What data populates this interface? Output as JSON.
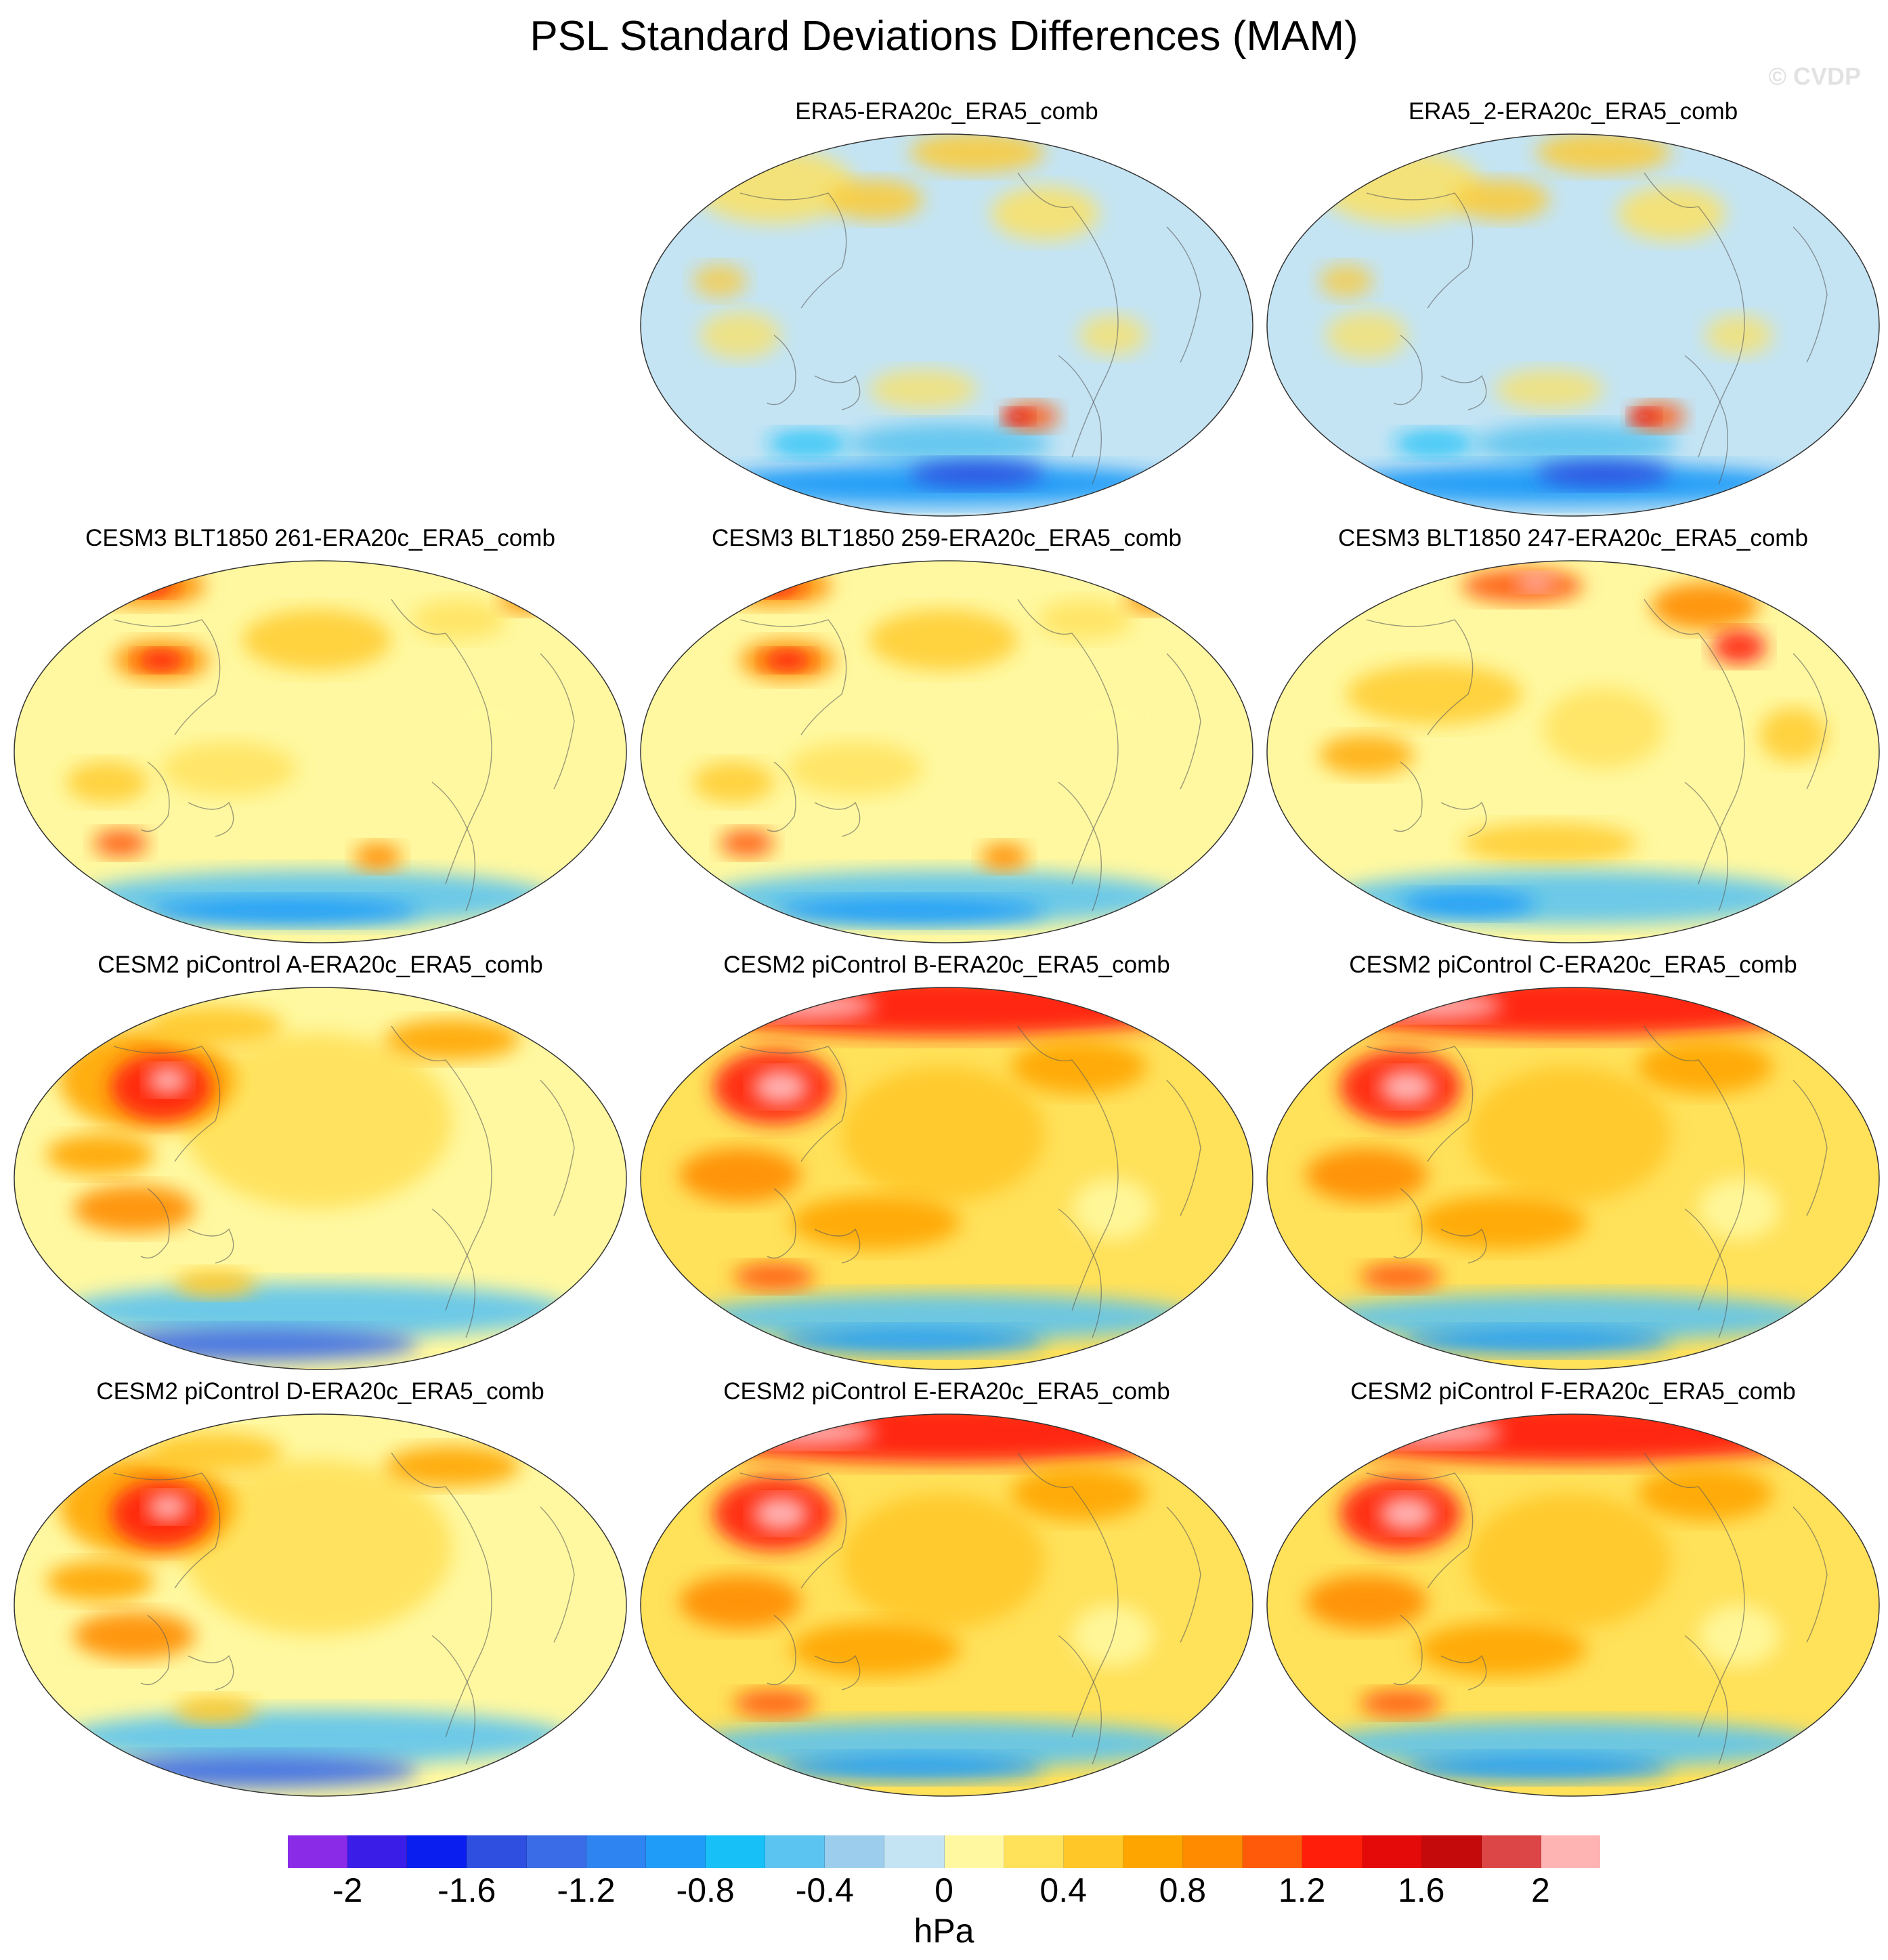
{
  "title": "PSL Standard Deviations Differences (MAM)",
  "watermark": "© CVDP",
  "panels": [
    {
      "label": "ERA5-ERA20c_ERA5_comb",
      "pattern": "cool-tropics"
    },
    {
      "label": "ERA5_2-ERA20c_ERA5_comb",
      "pattern": "cool-tropics"
    },
    {
      "label": "CESM3 BLT1850 261-ERA20c_ERA5_comb",
      "pattern": "warm-northpacific"
    },
    {
      "label": "CESM3 BLT1850 259-ERA20c_ERA5_comb",
      "pattern": "warm-northpacific"
    },
    {
      "label": "CESM3 BLT1850 247-ERA20c_ERA5_comb",
      "pattern": "warm-arctic"
    },
    {
      "label": "CESM2 piControl A-ERA20c_ERA5_comb",
      "pattern": "strong-northpacific"
    },
    {
      "label": "CESM2 piControl B-ERA20c_ERA5_comb",
      "pattern": "strong-arctic"
    },
    {
      "label": "CESM2 piControl C-ERA20c_ERA5_comb",
      "pattern": "strong-arctic"
    },
    {
      "label": "CESM2 piControl D-ERA20c_ERA5_comb",
      "pattern": "strong-northpacific"
    },
    {
      "label": "CESM2 piControl E-ERA20c_ERA5_comb",
      "pattern": "strong-arctic"
    },
    {
      "label": "CESM2 piControl F-ERA20c_ERA5_comb",
      "pattern": "strong-arctic"
    }
  ],
  "colorbar": {
    "units": "hPa",
    "levels": [
      -2.2,
      -2.0,
      -1.8,
      -1.6,
      -1.4,
      -1.2,
      -1.0,
      -0.8,
      -0.6,
      -0.4,
      -0.2,
      0,
      0.2,
      0.4,
      0.6,
      0.8,
      1.0,
      1.2,
      1.4,
      1.6,
      1.8,
      2.0,
      2.2
    ],
    "colors": [
      "#8a2be8",
      "#3a1ee8",
      "#0a1ef0",
      "#2e4fe0",
      "#3a6ce8",
      "#2e84f0",
      "#1e9cf8",
      "#18c0f8",
      "#5cc4f0",
      "#9ccdec",
      "#c4e4f4",
      "#fff8a0",
      "#ffe15a",
      "#ffc828",
      "#ffa500",
      "#ff8c00",
      "#ff5a0a",
      "#ff1e0a",
      "#e40a0a",
      "#c40a0a",
      "#dc4646",
      "#ffb4b4"
    ],
    "tick_labels": [
      {
        "label": "-2",
        "value": -2.0
      },
      {
        "label": "-1.6",
        "value": -1.6
      },
      {
        "label": "-1.2",
        "value": -1.2
      },
      {
        "label": "-0.8",
        "value": -0.8
      },
      {
        "label": "-0.4",
        "value": -0.4
      },
      {
        "label": "0",
        "value": 0
      },
      {
        "label": "0.4",
        "value": 0.4
      },
      {
        "label": "0.8",
        "value": 0.8
      },
      {
        "label": "1.2",
        "value": 1.2
      },
      {
        "label": "1.6",
        "value": 1.6
      },
      {
        "label": "2",
        "value": 2.0
      }
    ]
  }
}
